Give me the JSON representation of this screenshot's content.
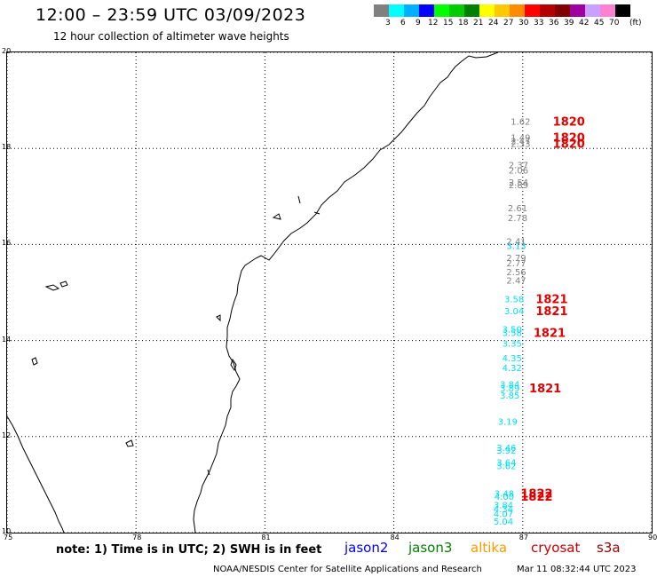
{
  "header": {
    "title": "12:00 – 23:59 UTC 03/09/2023",
    "subtitle": "12 hour collection of altimeter wave heights"
  },
  "legend": {
    "colors": [
      "#808080",
      "#00ffff",
      "#00b0ff",
      "#0000ff",
      "#00ff00",
      "#00cc00",
      "#008000",
      "#ffff00",
      "#ffc800",
      "#ff8c00",
      "#ff0000",
      "#b40000",
      "#800000",
      "#a000a0",
      "#c8a0ff",
      "#ff82d2",
      "#000000"
    ],
    "labels": [
      "3",
      "6",
      "9",
      "12",
      "15",
      "18",
      "21",
      "24",
      "27",
      "30",
      "33",
      "36",
      "39",
      "42",
      "45",
      "70"
    ],
    "unit": "(ft)"
  },
  "map": {
    "x_ticks": [
      "75",
      "78",
      "81",
      "84",
      "87",
      "90"
    ],
    "y_ticks": [
      "20",
      "18",
      "16",
      "14",
      "12",
      "10"
    ],
    "lon_range": [
      75,
      90
    ],
    "lat_range": [
      10,
      20
    ]
  },
  "swh_points": [
    {
      "lat": 18.55,
      "lon": 86.95,
      "value": "1.62",
      "color": "#808080"
    },
    {
      "lat": 18.22,
      "lon": 86.95,
      "value": "1.49",
      "color": "#808080"
    },
    {
      "lat": 18.14,
      "lon": 86.95,
      "value": "2.47",
      "color": "#808080"
    },
    {
      "lat": 18.09,
      "lon": 86.95,
      "value": "2.33",
      "color": "#808080"
    },
    {
      "lat": 17.64,
      "lon": 86.9,
      "value": "2.37",
      "color": "#808080"
    },
    {
      "lat": 17.53,
      "lon": 86.9,
      "value": "2.06",
      "color": "#808080"
    },
    {
      "lat": 17.28,
      "lon": 86.9,
      "value": "2.54",
      "color": "#808080"
    },
    {
      "lat": 17.23,
      "lon": 86.9,
      "value": "2.89",
      "color": "#808080"
    },
    {
      "lat": 16.75,
      "lon": 86.88,
      "value": "2.61",
      "color": "#808080"
    },
    {
      "lat": 16.54,
      "lon": 86.88,
      "value": "2.78",
      "color": "#808080"
    },
    {
      "lat": 16.05,
      "lon": 86.85,
      "value": "2.41",
      "color": "#808080"
    },
    {
      "lat": 15.96,
      "lon": 86.85,
      "value": "3.13",
      "color": "#00c8ff"
    },
    {
      "lat": 15.71,
      "lon": 86.85,
      "value": "2.79",
      "color": "#808080"
    },
    {
      "lat": 15.6,
      "lon": 86.85,
      "value": "2.77",
      "color": "#808080"
    },
    {
      "lat": 15.42,
      "lon": 86.85,
      "value": "2.56",
      "color": "#808080"
    },
    {
      "lat": 15.24,
      "lon": 86.85,
      "value": "2.47",
      "color": "#808080"
    },
    {
      "lat": 14.85,
      "lon": 86.8,
      "value": "3.58",
      "color": "#00e0f0"
    },
    {
      "lat": 14.6,
      "lon": 86.8,
      "value": "3.04",
      "color": "#00e0f0"
    },
    {
      "lat": 14.22,
      "lon": 86.75,
      "value": "3.50",
      "color": "#00e0f0"
    },
    {
      "lat": 14.15,
      "lon": 86.75,
      "value": "3.58",
      "color": "#00e0f0"
    },
    {
      "lat": 13.93,
      "lon": 86.75,
      "value": "3.35",
      "color": "#00e0f0"
    },
    {
      "lat": 13.62,
      "lon": 86.75,
      "value": "4.35",
      "color": "#00e0f0"
    },
    {
      "lat": 13.42,
      "lon": 86.75,
      "value": "4.32",
      "color": "#00e0f0"
    },
    {
      "lat": 13.08,
      "lon": 86.7,
      "value": "3.84",
      "color": "#00e0f0"
    },
    {
      "lat": 12.99,
      "lon": 86.7,
      "value": "3.89",
      "color": "#00e0f0"
    },
    {
      "lat": 12.85,
      "lon": 86.7,
      "value": "3.85",
      "color": "#00e0f0"
    },
    {
      "lat": 12.3,
      "lon": 86.65,
      "value": "3.19",
      "color": "#00e0f0"
    },
    {
      "lat": 11.76,
      "lon": 86.62,
      "value": "3.46",
      "color": "#00e0f0"
    },
    {
      "lat": 11.7,
      "lon": 86.62,
      "value": "3.92",
      "color": "#00e0f0"
    },
    {
      "lat": 11.45,
      "lon": 86.62,
      "value": "3.64",
      "color": "#00e0f0"
    },
    {
      "lat": 11.38,
      "lon": 86.62,
      "value": "3.62",
      "color": "#00e0f0"
    },
    {
      "lat": 10.8,
      "lon": 86.57,
      "value": "3.48",
      "color": "#00e0f0"
    },
    {
      "lat": 10.74,
      "lon": 86.57,
      "value": "4.00",
      "color": "#00e0f0"
    },
    {
      "lat": 10.56,
      "lon": 86.55,
      "value": "3.84",
      "color": "#00e0f0"
    },
    {
      "lat": 10.48,
      "lon": 86.55,
      "value": "4.34",
      "color": "#00e0f0"
    },
    {
      "lat": 10.38,
      "lon": 86.55,
      "value": "4.07",
      "color": "#00e0f0"
    },
    {
      "lat": 10.22,
      "lon": 86.55,
      "value": "5.04",
      "color": "#00e0f0"
    }
  ],
  "time_labels": [
    {
      "lat": 18.55,
      "lon": 87.7,
      "value": "1820"
    },
    {
      "lat": 18.22,
      "lon": 87.7,
      "value": "1820"
    },
    {
      "lat": 18.09,
      "lon": 87.7,
      "value": "1820"
    },
    {
      "lat": 14.85,
      "lon": 87.3,
      "value": "1821"
    },
    {
      "lat": 14.6,
      "lon": 87.3,
      "value": "1821"
    },
    {
      "lat": 14.15,
      "lon": 87.25,
      "value": "1821"
    },
    {
      "lat": 12.99,
      "lon": 87.15,
      "value": "1821"
    },
    {
      "lat": 10.8,
      "lon": 86.95,
      "value": "1822"
    },
    {
      "lat": 10.74,
      "lon": 86.95,
      "value": "1822"
    }
  ],
  "time_label_color": "#e00000",
  "note": "note:  1) Time is in UTC; 2) SWH is in feet",
  "satellites": [
    {
      "name": "jason2",
      "color": "#0000ff"
    },
    {
      "name": "jason3",
      "color": "#008000"
    },
    {
      "name": "altika",
      "color": "#ff9900"
    },
    {
      "name": "cryosat",
      "color": "#cc0000"
    },
    {
      "name": "s3a",
      "color": "#990000"
    }
  ],
  "footer": {
    "org": "NOAA/NESDIS Center for Satellite Applications and Research",
    "timestamp": "Mar 11 08:32:44 UTC 2023"
  }
}
